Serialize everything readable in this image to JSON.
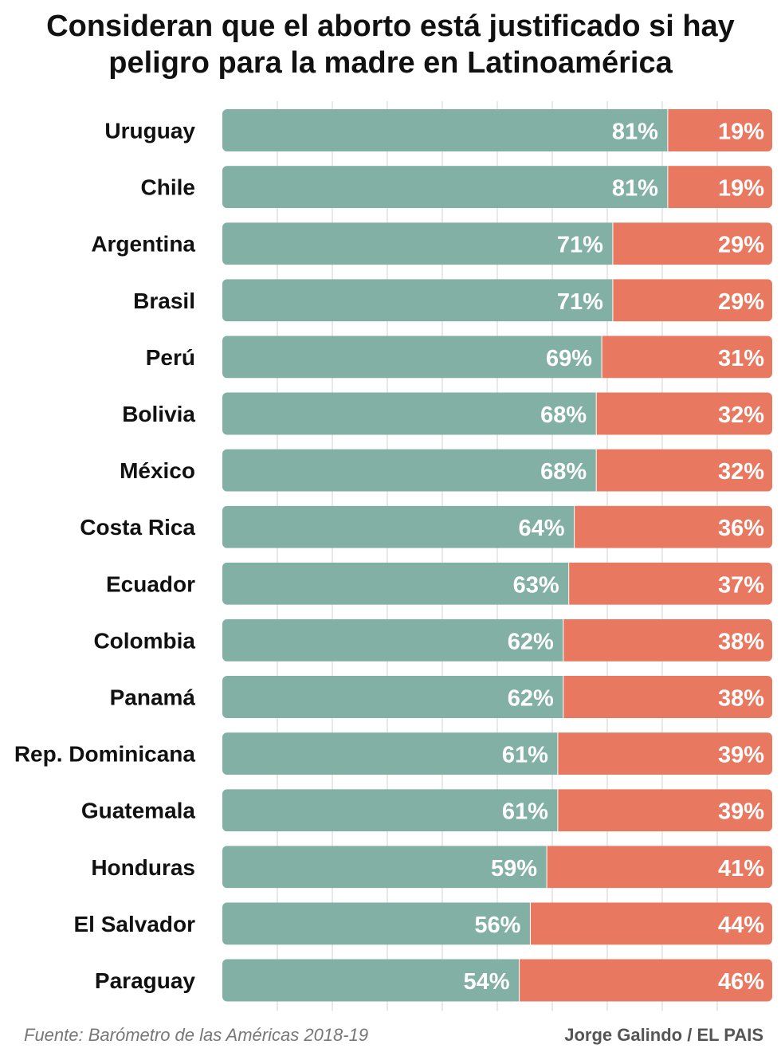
{
  "title": {
    "line1": "Consideran que el aborto está justificado si hay",
    "line2": "peligro para la madre en Latinoamérica"
  },
  "colors": {
    "justified": "#82b0a5",
    "not_justified": "#e97860",
    "grid": "#d0d0d0",
    "label": "#111111",
    "value_text": "#ffffff"
  },
  "chart_data": {
    "type": "bar",
    "orientation": "horizontal",
    "stacked": true,
    "categories": [
      "Uruguay",
      "Chile",
      "Argentina",
      "Brasil",
      "Perú",
      "Bolivia",
      "México",
      "Costa Rica",
      "Ecuador",
      "Colombia",
      "Panamá",
      "Rep. Dominicana",
      "Guatemala",
      "Honduras",
      "El Salvador",
      "Paraguay"
    ],
    "series": [
      {
        "values": [
          81,
          81,
          71,
          71,
          69,
          68,
          68,
          64,
          63,
          62,
          62,
          61,
          61,
          59,
          56,
          54
        ]
      },
      {
        "values": [
          19,
          19,
          29,
          29,
          31,
          32,
          32,
          36,
          37,
          38,
          38,
          39,
          39,
          41,
          44,
          46
        ]
      }
    ],
    "value_suffix": "%",
    "xlim": [
      0,
      100
    ],
    "grid": true
  },
  "footer": {
    "source": "Fuente: Barómetro de las Américas 2018-19",
    "credit": "Jorge Galindo / EL PAIS"
  }
}
